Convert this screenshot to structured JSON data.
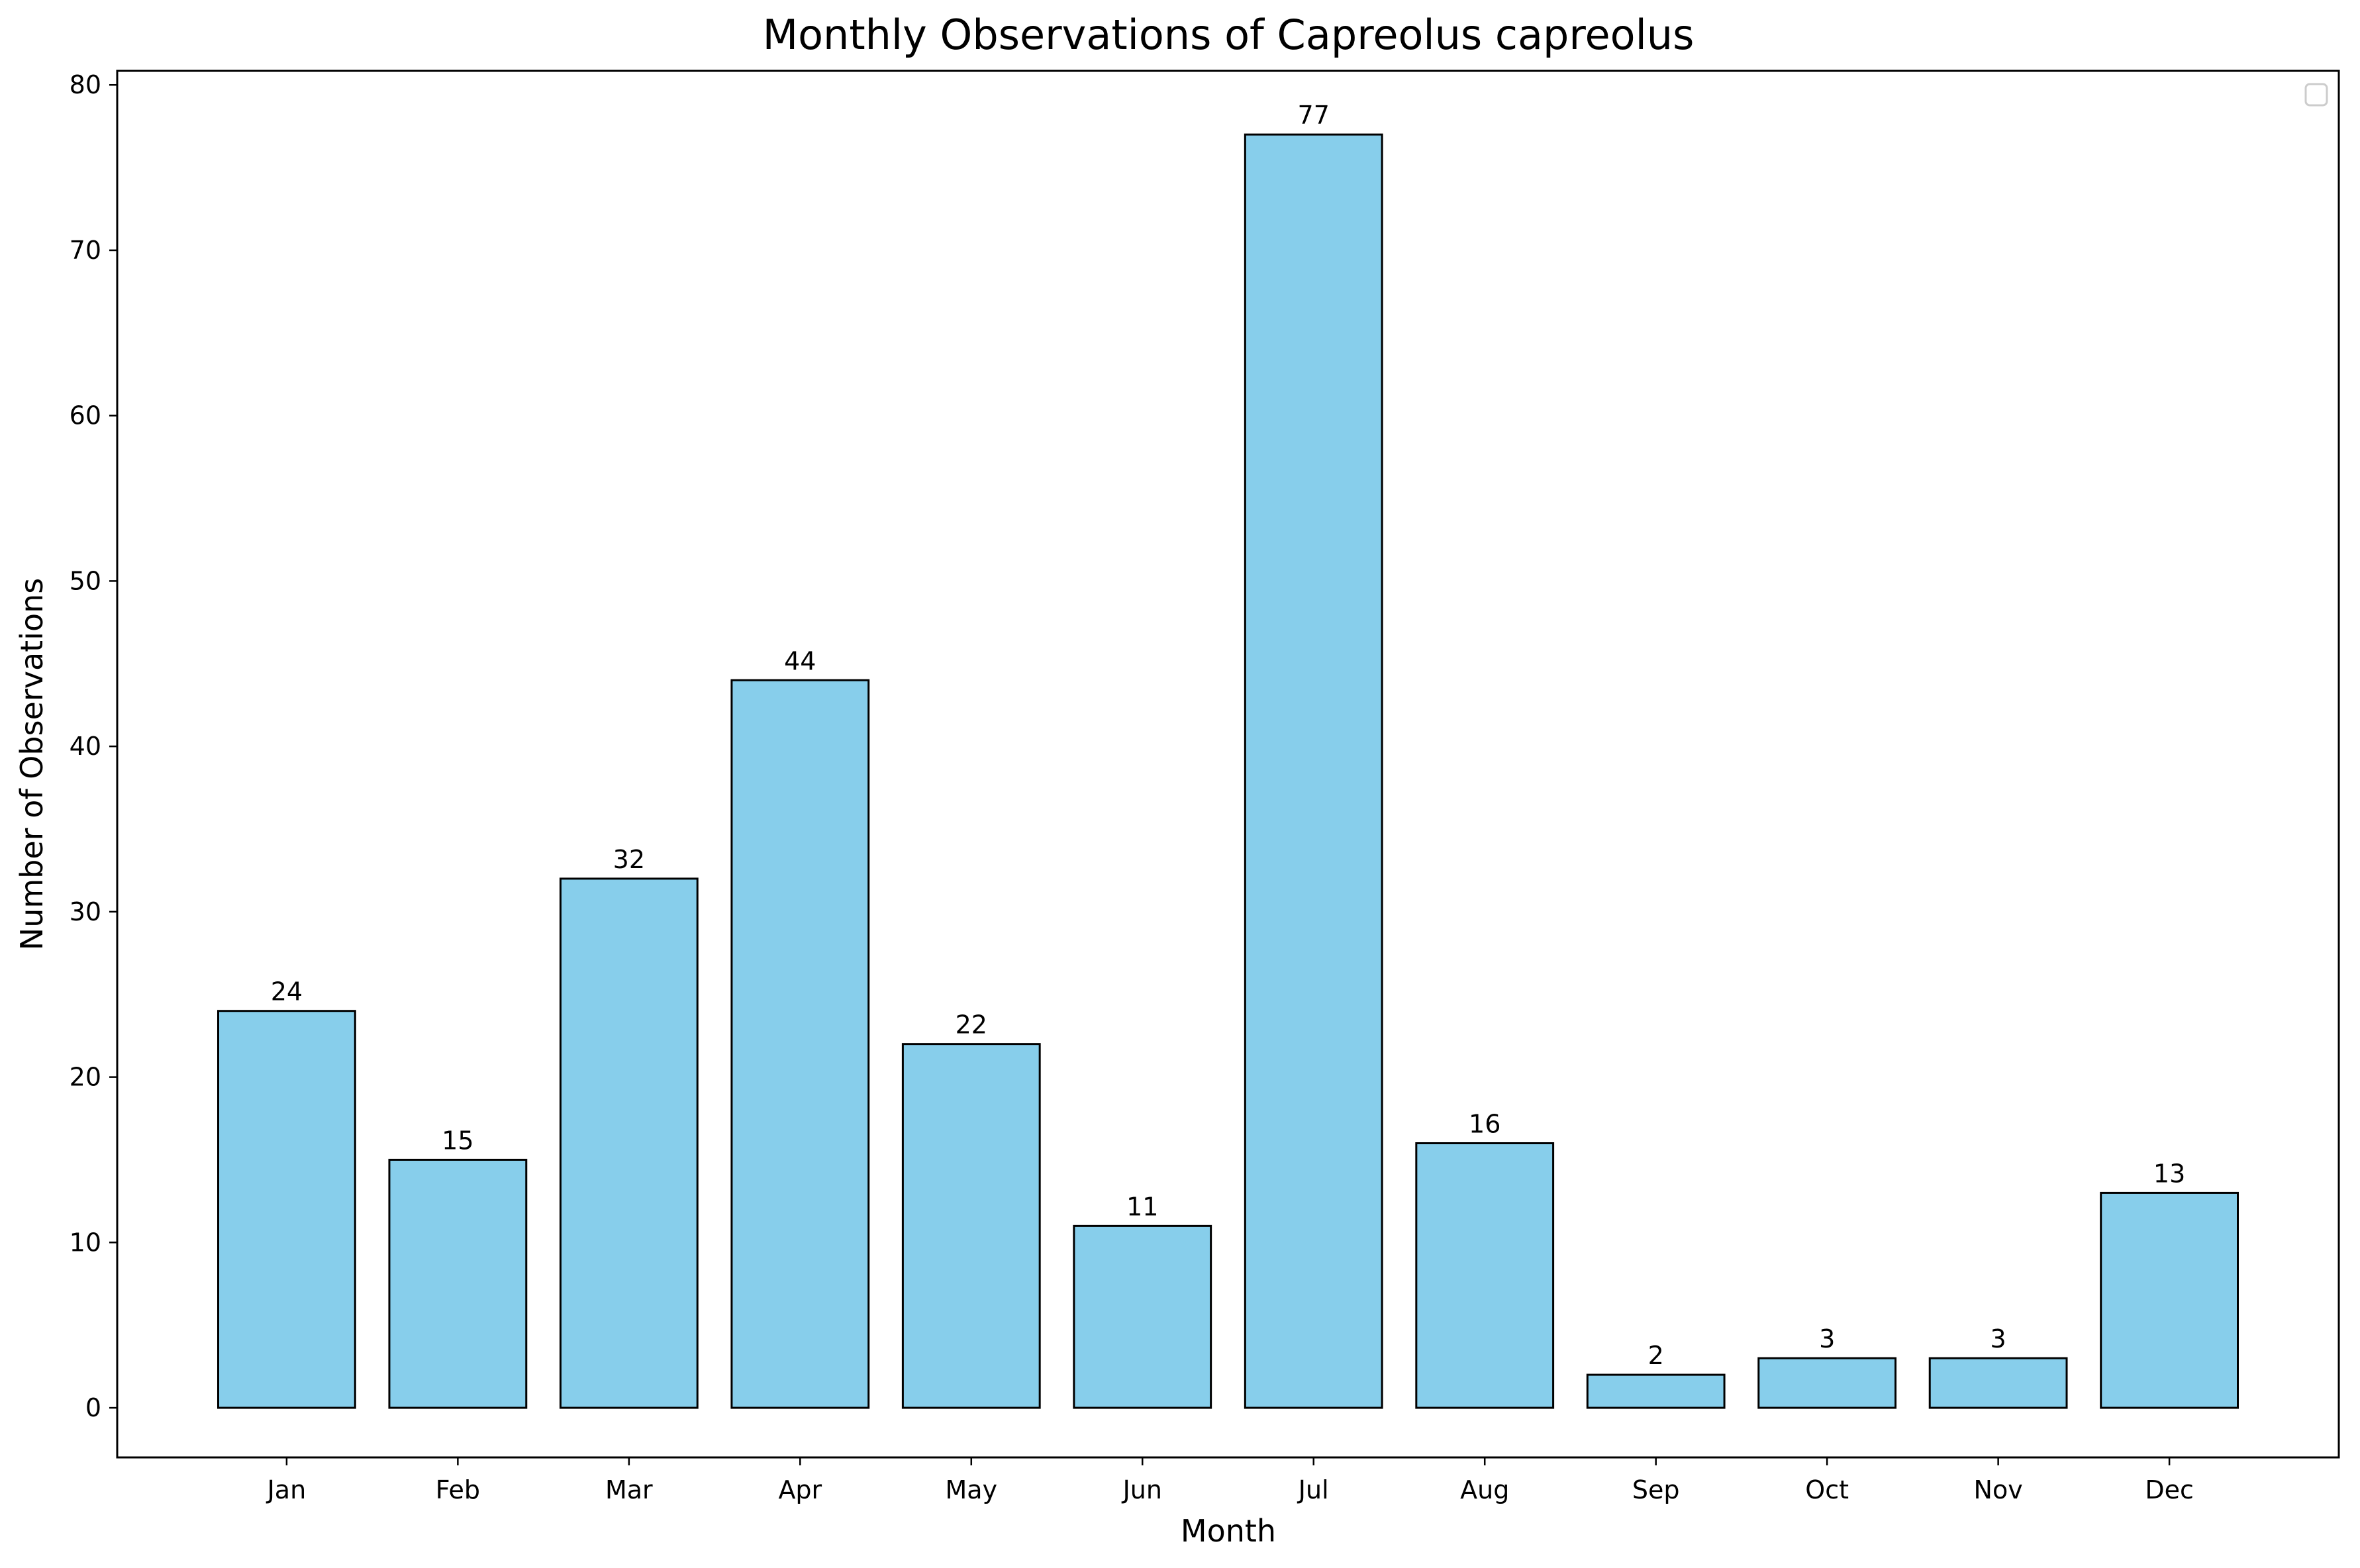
{
  "chart_data": {
    "type": "bar",
    "title": "Monthly Observations of Capreolus capreolus",
    "xlabel": "Month",
    "ylabel": "Number of Observations",
    "categories": [
      "Jan",
      "Feb",
      "Mar",
      "Apr",
      "May",
      "Jun",
      "Jul",
      "Aug",
      "Sep",
      "Oct",
      "Nov",
      "Dec"
    ],
    "values": [
      24,
      15,
      32,
      44,
      22,
      11,
      77,
      16,
      2,
      3,
      3,
      13
    ],
    "data_labels": [
      "24",
      "15",
      "32",
      "44",
      "22",
      "11",
      "77",
      "16",
      "2",
      "3",
      "3",
      "13"
    ],
    "yticks": [
      0,
      10,
      20,
      30,
      40,
      50,
      60,
      70,
      80
    ],
    "ytick_labels": [
      "0",
      "10",
      "20",
      "30",
      "40",
      "50",
      "60",
      "70",
      "80"
    ],
    "ylim": [
      -3,
      80.85
    ],
    "grid": false,
    "legend": {
      "placement": "top-right",
      "entries": []
    },
    "colors": {
      "bar_fill": "#87CEEB",
      "bar_edge": "#000000"
    }
  }
}
